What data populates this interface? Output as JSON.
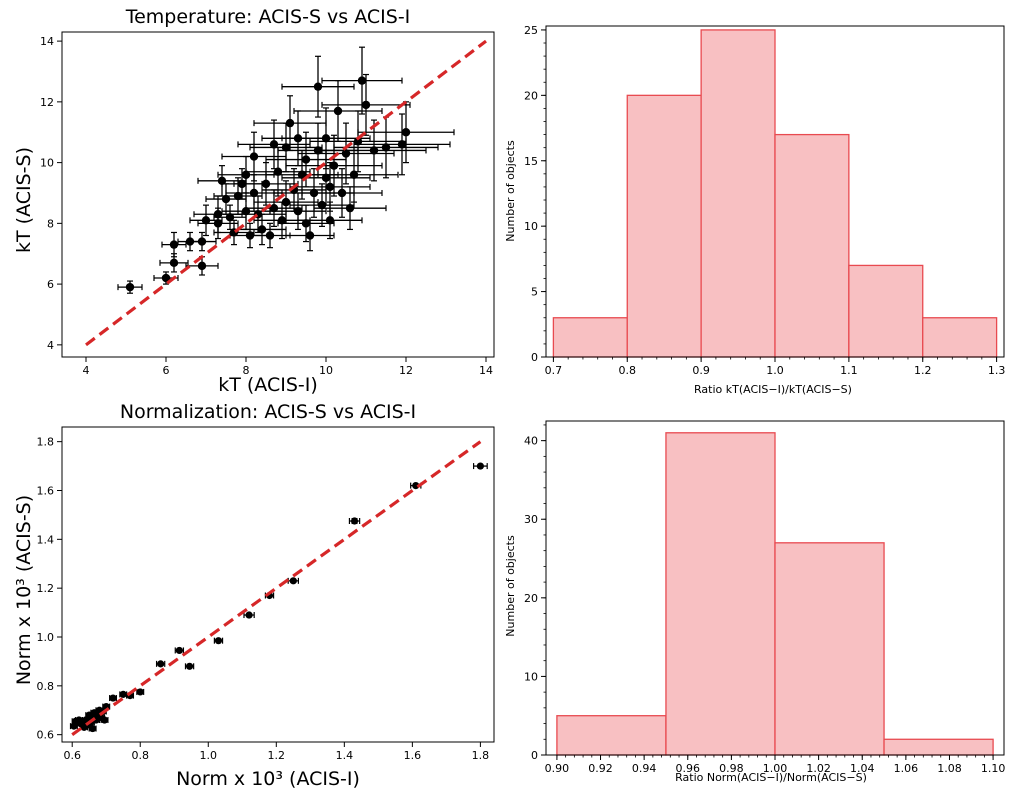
{
  "chart_data": [
    {
      "type": "scatter",
      "title": "Temperature: ACIS-S vs ACIS-I",
      "xlabel": "kT (ACIS-I)",
      "ylabel": "kT (ACIS-S)",
      "xlim": [
        3.4,
        14.2
      ],
      "ylim": [
        3.6,
        14.3
      ],
      "xticks": [
        4,
        6,
        8,
        10,
        12,
        14
      ],
      "yticks": [
        4,
        6,
        8,
        10,
        12,
        14
      ],
      "grid": false,
      "marker_color": "#000000",
      "line_color": "#d62728",
      "reference_line": {
        "x": [
          4,
          14
        ],
        "y": [
          4,
          14
        ]
      },
      "points": [
        {
          "x": 5.1,
          "y": 5.9,
          "xe": 0.3,
          "ye": 0.2
        },
        {
          "x": 6.0,
          "y": 6.2,
          "xe": 0.3,
          "ye": 0.2
        },
        {
          "x": 6.2,
          "y": 6.7,
          "xe": 0.35,
          "ye": 0.3
        },
        {
          "x": 6.2,
          "y": 7.3,
          "xe": 0.3,
          "ye": 0.4
        },
        {
          "x": 6.6,
          "y": 7.4,
          "xe": 0.3,
          "ye": 0.3
        },
        {
          "x": 6.9,
          "y": 7.4,
          "xe": 0.35,
          "ye": 0.3
        },
        {
          "x": 6.9,
          "y": 6.6,
          "xe": 0.4,
          "ye": 0.3
        },
        {
          "x": 7.0,
          "y": 8.1,
          "xe": 0.4,
          "ye": 0.5
        },
        {
          "x": 7.3,
          "y": 8.0,
          "xe": 0.5,
          "ye": 0.5
        },
        {
          "x": 7.3,
          "y": 8.3,
          "xe": 0.6,
          "ye": 0.6
        },
        {
          "x": 7.4,
          "y": 9.4,
          "xe": 0.6,
          "ye": 0.5
        },
        {
          "x": 7.5,
          "y": 8.8,
          "xe": 0.5,
          "ye": 0.5
        },
        {
          "x": 7.6,
          "y": 8.2,
          "xe": 0.4,
          "ye": 0.4
        },
        {
          "x": 7.7,
          "y": 7.7,
          "xe": 0.5,
          "ye": 0.4
        },
        {
          "x": 7.8,
          "y": 8.9,
          "xe": 0.6,
          "ye": 0.6
        },
        {
          "x": 7.9,
          "y": 9.3,
          "xe": 0.5,
          "ye": 0.5
        },
        {
          "x": 8.0,
          "y": 8.4,
          "xe": 0.6,
          "ye": 0.6
        },
        {
          "x": 8.1,
          "y": 7.6,
          "xe": 0.5,
          "ye": 0.4
        },
        {
          "x": 8.2,
          "y": 9.0,
          "xe": 0.7,
          "ye": 0.6
        },
        {
          "x": 8.3,
          "y": 8.3,
          "xe": 0.7,
          "ye": 0.6
        },
        {
          "x": 8.4,
          "y": 7.8,
          "xe": 0.6,
          "ye": 0.5
        },
        {
          "x": 8.5,
          "y": 9.3,
          "xe": 0.8,
          "ye": 0.7
        },
        {
          "x": 8.6,
          "y": 7.6,
          "xe": 0.5,
          "ye": 0.4
        },
        {
          "x": 8.7,
          "y": 8.5,
          "xe": 0.7,
          "ye": 0.6
        },
        {
          "x": 8.8,
          "y": 9.7,
          "xe": 0.8,
          "ye": 0.8
        },
        {
          "x": 8.9,
          "y": 8.1,
          "xe": 0.7,
          "ye": 0.6
        },
        {
          "x": 9.0,
          "y": 8.7,
          "xe": 0.8,
          "ye": 0.7
        },
        {
          "x": 9.0,
          "y": 10.5,
          "xe": 0.9,
          "ye": 0.8
        },
        {
          "x": 9.1,
          "y": 11.3,
          "xe": 0.9,
          "ye": 0.9
        },
        {
          "x": 9.2,
          "y": 9.1,
          "xe": 0.8,
          "ye": 0.7
        },
        {
          "x": 9.3,
          "y": 8.4,
          "xe": 0.7,
          "ye": 0.6
        },
        {
          "x": 9.4,
          "y": 9.6,
          "xe": 0.9,
          "ye": 0.8
        },
        {
          "x": 9.5,
          "y": 10.1,
          "xe": 1.0,
          "ye": 0.9
        },
        {
          "x": 9.6,
          "y": 7.6,
          "xe": 0.6,
          "ye": 0.5
        },
        {
          "x": 9.7,
          "y": 9.0,
          "xe": 1.0,
          "ye": 0.8
        },
        {
          "x": 9.8,
          "y": 10.4,
          "xe": 1.0,
          "ye": 0.9
        },
        {
          "x": 9.8,
          "y": 12.5,
          "xe": 0.9,
          "ye": 1.0
        },
        {
          "x": 9.9,
          "y": 8.6,
          "xe": 0.8,
          "ye": 0.7
        },
        {
          "x": 10.0,
          "y": 9.5,
          "xe": 1.1,
          "ye": 0.9
        },
        {
          "x": 10.0,
          "y": 10.8,
          "xe": 1.1,
          "ye": 1.0
        },
        {
          "x": 10.1,
          "y": 8.1,
          "xe": 0.8,
          "ye": 0.6
        },
        {
          "x": 10.2,
          "y": 9.9,
          "xe": 1.2,
          "ye": 1.0
        },
        {
          "x": 10.3,
          "y": 11.7,
          "xe": 1.1,
          "ye": 1.0
        },
        {
          "x": 10.4,
          "y": 9.0,
          "xe": 1.0,
          "ye": 0.8
        },
        {
          "x": 10.5,
          "y": 10.3,
          "xe": 1.2,
          "ye": 1.0
        },
        {
          "x": 10.6,
          "y": 8.5,
          "xe": 0.9,
          "ye": 0.7
        },
        {
          "x": 10.7,
          "y": 9.6,
          "xe": 1.1,
          "ye": 0.9
        },
        {
          "x": 10.8,
          "y": 10.7,
          "xe": 1.2,
          "ye": 1.0
        },
        {
          "x": 10.9,
          "y": 12.7,
          "xe": 1.0,
          "ye": 1.1
        },
        {
          "x": 11.0,
          "y": 11.9,
          "xe": 1.1,
          "ye": 1.0
        },
        {
          "x": 11.2,
          "y": 10.4,
          "xe": 1.3,
          "ye": 1.0
        },
        {
          "x": 11.5,
          "y": 10.5,
          "xe": 1.3,
          "ye": 1.0
        },
        {
          "x": 11.9,
          "y": 10.6,
          "xe": 1.2,
          "ye": 1.0
        },
        {
          "x": 12.0,
          "y": 11.0,
          "xe": 1.2,
          "ye": 1.0
        },
        {
          "x": 8.2,
          "y": 10.2,
          "xe": 0.8,
          "ye": 0.8
        },
        {
          "x": 8.7,
          "y": 10.6,
          "xe": 0.9,
          "ye": 0.8
        },
        {
          "x": 9.3,
          "y": 10.8,
          "xe": 0.9,
          "ye": 0.9
        },
        {
          "x": 10.1,
          "y": 9.2,
          "xe": 1.0,
          "ye": 0.8
        },
        {
          "x": 9.5,
          "y": 8.0,
          "xe": 0.7,
          "ye": 0.6
        },
        {
          "x": 8.0,
          "y": 9.6,
          "xe": 0.7,
          "ye": 0.6
        }
      ]
    },
    {
      "type": "bar",
      "title": "",
      "xlabel": "Ratio kT(ACIS−I)/kT(ACIS−S)",
      "ylabel": "Number of objects",
      "xlim": [
        0.69,
        1.31
      ],
      "ylim": [
        0,
        25.3
      ],
      "xticks": [
        "0.7",
        "0.8",
        "0.9",
        "1.0",
        "1.1",
        "1.2",
        "1.3"
      ],
      "yticks": [
        "0",
        "5",
        "10",
        "15",
        "20",
        "25"
      ],
      "bins": [
        {
          "from": 0.7,
          "to": 0.8,
          "value": 3
        },
        {
          "from": 0.8,
          "to": 0.9,
          "value": 20
        },
        {
          "from": 0.9,
          "to": 1.0,
          "value": 25
        },
        {
          "from": 1.0,
          "to": 1.1,
          "value": 17
        },
        {
          "from": 1.1,
          "to": 1.2,
          "value": 7
        },
        {
          "from": 1.2,
          "to": 1.3,
          "value": 3
        }
      ],
      "fill_color": "#f8c0c2",
      "edge_color": "#e84a50"
    },
    {
      "type": "scatter",
      "title": "Normalization: ACIS-S vs ACIS-I",
      "xlabel": "Norm x 10³ (ACIS-I)",
      "ylabel": "Norm x 10³ (ACIS-S)",
      "xlim": [
        0.57,
        1.84
      ],
      "ylim": [
        0.57,
        1.86
      ],
      "xticks": [
        "0.6",
        "0.8",
        "1.0",
        "1.2",
        "1.4",
        "1.6",
        "1.8"
      ],
      "yticks": [
        "0.6",
        "0.8",
        "1.0",
        "1.2",
        "1.4",
        "1.6",
        "1.8"
      ],
      "grid": false,
      "marker_color": "#000000",
      "line_color": "#d62728",
      "reference_line": {
        "x": [
          0.6,
          1.8
        ],
        "y": [
          0.6,
          1.8
        ]
      },
      "points": [
        {
          "x": 1.8,
          "y": 1.7,
          "xe": 0.02,
          "ye": 0.005
        },
        {
          "x": 1.61,
          "y": 1.62,
          "xe": 0.015,
          "ye": 0.005
        },
        {
          "x": 1.43,
          "y": 1.475,
          "xe": 0.015,
          "ye": 0.01
        },
        {
          "x": 1.25,
          "y": 1.23,
          "xe": 0.015,
          "ye": 0.005
        },
        {
          "x": 1.18,
          "y": 1.17,
          "xe": 0.012,
          "ye": 0.005
        },
        {
          "x": 1.12,
          "y": 1.09,
          "xe": 0.015,
          "ye": 0.005
        },
        {
          "x": 1.03,
          "y": 0.985,
          "xe": 0.012,
          "ye": 0.005
        },
        {
          "x": 0.945,
          "y": 0.88,
          "xe": 0.012,
          "ye": 0.005
        },
        {
          "x": 0.915,
          "y": 0.945,
          "xe": 0.012,
          "ye": 0.005
        },
        {
          "x": 0.86,
          "y": 0.89,
          "xe": 0.012,
          "ye": 0.005
        },
        {
          "x": 0.8,
          "y": 0.775,
          "xe": 0.01,
          "ye": 0.005
        },
        {
          "x": 0.77,
          "y": 0.76,
          "xe": 0.01,
          "ye": 0.005
        },
        {
          "x": 0.75,
          "y": 0.765,
          "xe": 0.01,
          "ye": 0.005
        },
        {
          "x": 0.72,
          "y": 0.75,
          "xe": 0.01,
          "ye": 0.005
        },
        {
          "x": 0.7,
          "y": 0.715,
          "xe": 0.01,
          "ye": 0.005
        },
        {
          "x": 0.69,
          "y": 0.695,
          "xe": 0.01,
          "ye": 0.005
        },
        {
          "x": 0.68,
          "y": 0.7,
          "xe": 0.01,
          "ye": 0.005
        },
        {
          "x": 0.675,
          "y": 0.68,
          "xe": 0.01,
          "ye": 0.005
        },
        {
          "x": 0.67,
          "y": 0.66,
          "xe": 0.01,
          "ye": 0.005
        },
        {
          "x": 0.665,
          "y": 0.69,
          "xe": 0.01,
          "ye": 0.005
        },
        {
          "x": 0.66,
          "y": 0.67,
          "xe": 0.01,
          "ye": 0.005
        },
        {
          "x": 0.655,
          "y": 0.65,
          "xe": 0.01,
          "ye": 0.005
        },
        {
          "x": 0.65,
          "y": 0.68,
          "xe": 0.01,
          "ye": 0.005
        },
        {
          "x": 0.645,
          "y": 0.64,
          "xe": 0.01,
          "ye": 0.005
        },
        {
          "x": 0.64,
          "y": 0.66,
          "xe": 0.01,
          "ye": 0.005
        },
        {
          "x": 0.635,
          "y": 0.63,
          "xe": 0.01,
          "ye": 0.005
        },
        {
          "x": 0.63,
          "y": 0.655,
          "xe": 0.01,
          "ye": 0.005
        },
        {
          "x": 0.625,
          "y": 0.645,
          "xe": 0.01,
          "ye": 0.005
        },
        {
          "x": 0.62,
          "y": 0.66,
          "xe": 0.01,
          "ye": 0.005
        },
        {
          "x": 0.61,
          "y": 0.655,
          "xe": 0.01,
          "ye": 0.005
        },
        {
          "x": 0.605,
          "y": 0.635,
          "xe": 0.01,
          "ye": 0.005
        },
        {
          "x": 0.685,
          "y": 0.67,
          "xe": 0.01,
          "ye": 0.005
        },
        {
          "x": 0.695,
          "y": 0.66,
          "xe": 0.01,
          "ye": 0.005
        },
        {
          "x": 0.66,
          "y": 0.625,
          "xe": 0.01,
          "ye": 0.005
        }
      ]
    },
    {
      "type": "bar",
      "title": "",
      "xlabel": "Ratio Norm(ACIS−I)/Norm(ACIS−S)",
      "ylabel": "Number of objects",
      "xlim": [
        0.895,
        1.105
      ],
      "ylim": [
        0,
        42.5
      ],
      "xticks": [
        "0.90",
        "0.92",
        "0.94",
        "0.96",
        "0.98",
        "1.00",
        "1.02",
        "1.04",
        "1.06",
        "1.08",
        "1.10"
      ],
      "yticks": [
        "0",
        "10",
        "20",
        "30",
        "40"
      ],
      "bins": [
        {
          "from": 0.9,
          "to": 0.95,
          "value": 5
        },
        {
          "from": 0.95,
          "to": 1.0,
          "value": 41
        },
        {
          "from": 1.0,
          "to": 1.05,
          "value": 27
        },
        {
          "from": 1.05,
          "to": 1.1,
          "value": 2
        }
      ],
      "fill_color": "#f8c0c2",
      "edge_color": "#e84a50"
    }
  ]
}
